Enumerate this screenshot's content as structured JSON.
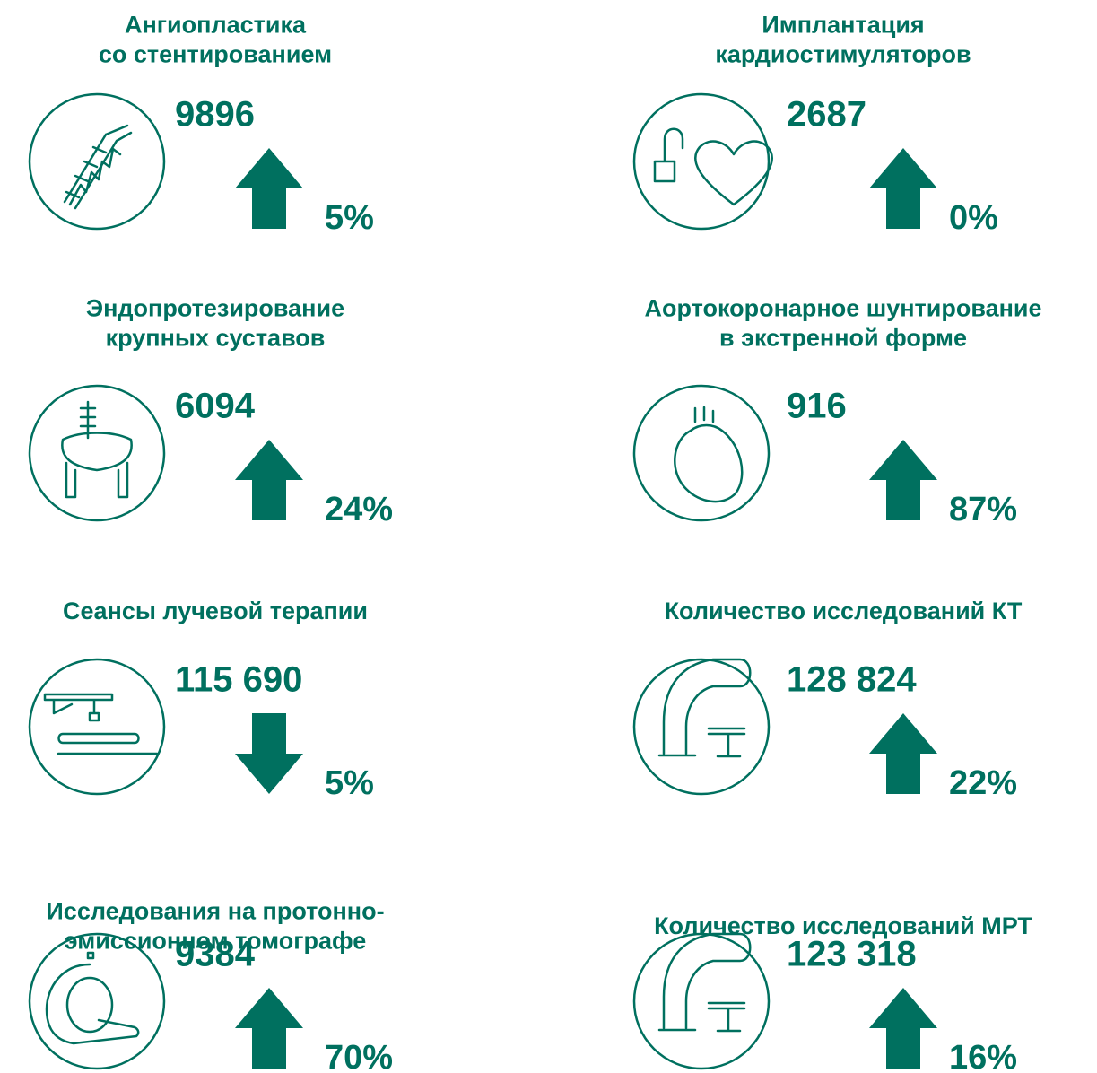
{
  "cards": [
    {
      "title": [
        "Ангиопластика",
        "со стентированием"
      ],
      "value": "9896",
      "direction": "up",
      "change": "5%"
    },
    {
      "title": [
        "Имплантация",
        "кардиостимуляторов"
      ],
      "value": "2687",
      "direction": "up",
      "change": "0%"
    },
    {
      "title": [
        "Эндопротезирование",
        "крупных суставов"
      ],
      "value": "6094",
      "direction": "up",
      "change": "24%"
    },
    {
      "title": [
        "Аортокоронарное шунтирование",
        "в экстренной форме"
      ],
      "value": "916",
      "direction": "up",
      "change": "87%"
    },
    {
      "title": [
        "Сеансы лучевой терапии"
      ],
      "value": "115 690",
      "direction": "down",
      "change": "5%"
    },
    {
      "title": [
        "Количество исследований КТ"
      ],
      "value": "128 824",
      "direction": "up",
      "change": "22%"
    },
    {
      "title": [
        "Исследования на протонно-",
        "эмиссионном томографе"
      ],
      "value": "9384",
      "direction": "up",
      "change": "70%"
    },
    {
      "title": [
        "Количество исследований МРТ"
      ],
      "value": "123 318",
      "direction": "up",
      "change": "16%"
    }
  ]
}
